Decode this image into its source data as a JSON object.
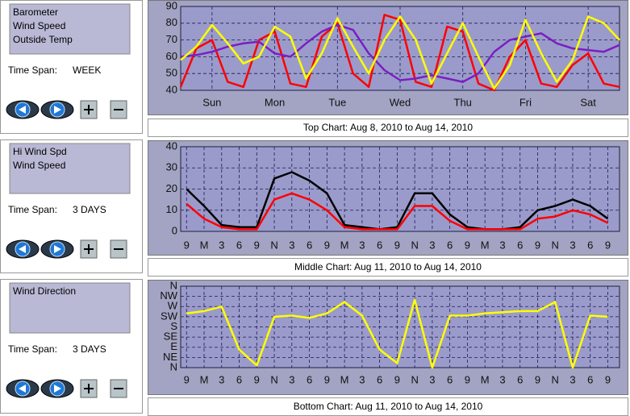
{
  "panels": [
    {
      "legend": [
        "Barometer",
        "Wind Speed",
        "Outside Temp"
      ],
      "time_span_label": "Time Span:",
      "time_span": "WEEK"
    },
    {
      "legend": [
        "Hi Wind Spd",
        "Wind Speed"
      ],
      "time_span_label": "Time Span:",
      "time_span": "3 DAYS"
    },
    {
      "legend": [
        "Wind Direction"
      ],
      "time_span_label": "Time Span:",
      "time_span": "3 DAYS"
    }
  ],
  "chart_data": [
    {
      "type": "line",
      "title": "Top Chart:  Aug 8, 2010  to  Aug 14, 2010",
      "x": [
        0,
        0.25,
        0.5,
        0.75,
        1,
        1.25,
        1.5,
        1.75,
        2,
        2.25,
        2.5,
        2.75,
        3,
        3.25,
        3.5,
        3.75,
        4,
        4.25,
        4.5,
        4.75,
        5,
        5.25,
        5.5,
        5.75,
        6,
        6.25,
        6.5,
        6.75,
        7
      ],
      "xlim": [
        0,
        7
      ],
      "xticks": [
        {
          "value": 0.5,
          "label": "Sun"
        },
        {
          "value": 1.5,
          "label": "Mon"
        },
        {
          "value": 2.5,
          "label": "Tue"
        },
        {
          "value": 3.5,
          "label": "Wed"
        },
        {
          "value": 4.5,
          "label": "Thu"
        },
        {
          "value": 5.5,
          "label": "Fri"
        },
        {
          "value": 6.5,
          "label": "Sat"
        }
      ],
      "ylim": [
        40,
        90
      ],
      "yticks": [
        40,
        50,
        60,
        70,
        80,
        90
      ],
      "grid": true,
      "series": [
        {
          "name": "Wind Speed",
          "color": "#ff0000",
          "values": [
            42,
            65,
            70,
            45,
            42,
            70,
            75,
            44,
            42,
            72,
            80,
            50,
            42,
            85,
            82,
            45,
            42,
            78,
            75,
            44,
            40,
            60,
            70,
            44,
            42,
            55,
            62,
            44,
            42
          ]
        },
        {
          "name": "Barometer",
          "color": "#7a1fc0",
          "values": [
            60,
            61,
            63,
            66,
            68,
            69,
            62,
            60,
            68,
            75,
            79,
            76,
            62,
            52,
            46,
            47,
            49,
            47,
            45,
            50,
            63,
            70,
            72,
            74,
            68,
            65,
            64,
            63,
            67
          ]
        },
        {
          "name": "Outside Temp",
          "color": "#ffff00",
          "values": [
            58,
            66,
            79,
            68,
            56,
            60,
            78,
            72,
            47,
            62,
            83,
            66,
            50,
            70,
            84,
            70,
            44,
            62,
            80,
            60,
            41,
            55,
            82,
            62,
            45,
            58,
            84,
            80,
            70
          ]
        }
      ]
    },
    {
      "type": "line",
      "title": "Middle Chart:  Aug 11, 2010  to  Aug 14, 2010",
      "x": [
        0,
        3,
        6,
        9,
        12,
        15,
        18,
        21,
        24,
        27,
        30,
        33,
        36,
        39,
        42,
        45,
        48,
        51,
        54,
        57,
        60,
        63,
        66,
        69,
        72
      ],
      "xlim": [
        -1,
        74
      ],
      "xticks": [
        {
          "value": 0,
          "label": "9"
        },
        {
          "value": 3,
          "label": "M"
        },
        {
          "value": 6,
          "label": "3"
        },
        {
          "value": 9,
          "label": "6"
        },
        {
          "value": 12,
          "label": "9"
        },
        {
          "value": 15,
          "label": "N"
        },
        {
          "value": 18,
          "label": "3"
        },
        {
          "value": 21,
          "label": "6"
        },
        {
          "value": 24,
          "label": "9"
        },
        {
          "value": 27,
          "label": "M"
        },
        {
          "value": 30,
          "label": "3"
        },
        {
          "value": 33,
          "label": "6"
        },
        {
          "value": 36,
          "label": "9"
        },
        {
          "value": 39,
          "label": "N"
        },
        {
          "value": 42,
          "label": "3"
        },
        {
          "value": 45,
          "label": "6"
        },
        {
          "value": 48,
          "label": "9"
        },
        {
          "value": 51,
          "label": "M"
        },
        {
          "value": 54,
          "label": "3"
        },
        {
          "value": 57,
          "label": "6"
        },
        {
          "value": 60,
          "label": "9"
        },
        {
          "value": 63,
          "label": "N"
        },
        {
          "value": 66,
          "label": "3"
        },
        {
          "value": 69,
          "label": "6"
        },
        {
          "value": 72,
          "label": "9"
        }
      ],
      "ylim": [
        0,
        40
      ],
      "yticks": [
        0,
        10,
        20,
        30,
        40
      ],
      "grid": true,
      "series": [
        {
          "name": "Hi Wind Spd",
          "color": "#000000",
          "values": [
            20,
            12,
            3,
            2,
            2,
            25,
            28,
            24,
            18,
            3,
            2,
            1,
            2,
            18,
            18,
            8,
            2,
            1,
            1,
            2,
            10,
            12,
            15,
            12,
            6
          ]
        },
        {
          "name": "Wind Speed",
          "color": "#ff0000",
          "values": [
            13,
            6,
            2,
            1,
            1,
            15,
            18,
            15,
            10,
            2,
            1,
            1,
            1,
            12,
            12,
            5,
            1,
            1,
            1,
            1,
            6,
            7,
            10,
            8,
            4
          ]
        }
      ]
    },
    {
      "type": "line",
      "title": "Bottom Chart:  Aug 11, 2010  to  Aug 14, 2010",
      "x": [
        0,
        3,
        6,
        9,
        12,
        15,
        18,
        21,
        24,
        27,
        30,
        33,
        36,
        39,
        42,
        45,
        48,
        51,
        54,
        57,
        60,
        63,
        66,
        69,
        72
      ],
      "xlim": [
        -1,
        74
      ],
      "xticks": [
        {
          "value": 0,
          "label": "9"
        },
        {
          "value": 3,
          "label": "M"
        },
        {
          "value": 6,
          "label": "3"
        },
        {
          "value": 9,
          "label": "6"
        },
        {
          "value": 12,
          "label": "9"
        },
        {
          "value": 15,
          "label": "N"
        },
        {
          "value": 18,
          "label": "3"
        },
        {
          "value": 21,
          "label": "6"
        },
        {
          "value": 24,
          "label": "9"
        },
        {
          "value": 27,
          "label": "M"
        },
        {
          "value": 30,
          "label": "3"
        },
        {
          "value": 33,
          "label": "6"
        },
        {
          "value": 36,
          "label": "9"
        },
        {
          "value": 39,
          "label": "N"
        },
        {
          "value": 42,
          "label": "3"
        },
        {
          "value": 45,
          "label": "6"
        },
        {
          "value": 48,
          "label": "9"
        },
        {
          "value": 51,
          "label": "M"
        },
        {
          "value": 54,
          "label": "3"
        },
        {
          "value": 57,
          "label": "6"
        },
        {
          "value": 60,
          "label": "9"
        },
        {
          "value": 63,
          "label": "N"
        },
        {
          "value": 66,
          "label": "3"
        },
        {
          "value": 69,
          "label": "6"
        },
        {
          "value": 72,
          "label": "9"
        }
      ],
      "ylim": [
        0,
        360
      ],
      "yticks": [
        {
          "value": 0,
          "label": "N"
        },
        {
          "value": 45,
          "label": "NE"
        },
        {
          "value": 90,
          "label": "E"
        },
        {
          "value": 135,
          "label": "SE"
        },
        {
          "value": 180,
          "label": "S"
        },
        {
          "value": 225,
          "label": "SW"
        },
        {
          "value": 270,
          "label": "W"
        },
        {
          "value": 315,
          "label": "NW"
        },
        {
          "value": 360,
          "label": "N"
        }
      ],
      "grid": true,
      "series": [
        {
          "name": "Wind Direction",
          "color": "#ffff00",
          "values": [
            240,
            250,
            270,
            80,
            10,
            225,
            230,
            220,
            240,
            290,
            230,
            80,
            20,
            300,
            0,
            230,
            230,
            240,
            245,
            250,
            250,
            290,
            0,
            230,
            225
          ]
        }
      ]
    }
  ]
}
